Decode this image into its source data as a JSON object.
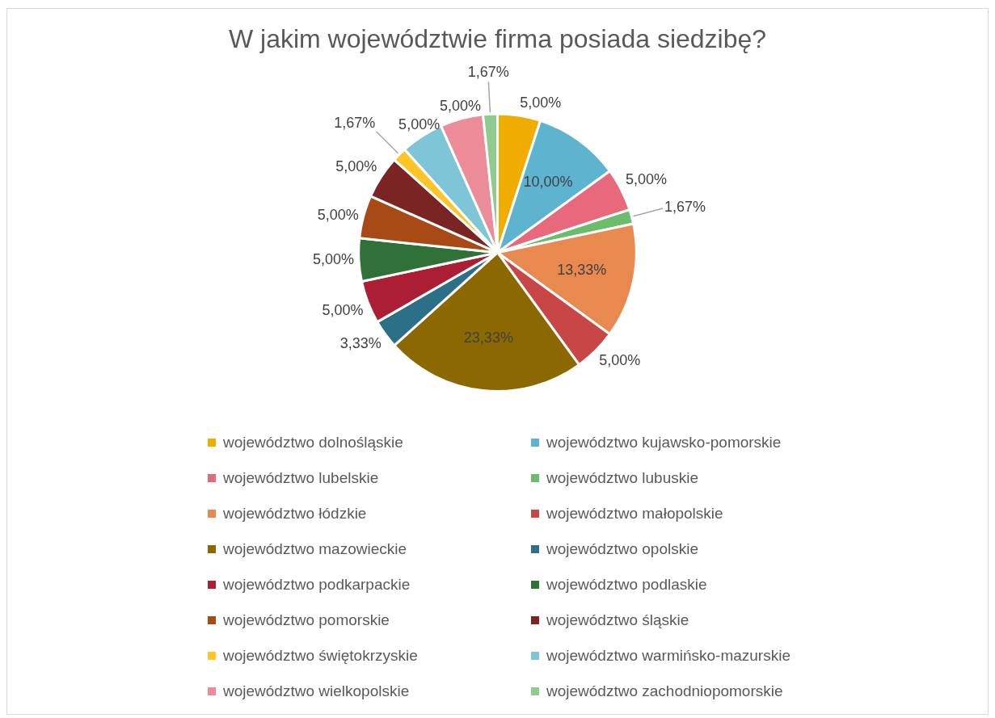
{
  "chart_data": {
    "type": "pie",
    "title": "W jakim województwie firma posiada siedzibę?",
    "categories": [
      "województwo dolnośląskie",
      "województwo kujawsko-pomorskie",
      "województwo lubelskie",
      "województwo lubuskie",
      "województwo łódzkie",
      "województwo małopolskie",
      "województwo mazowieckie",
      "województwo opolskie",
      "województwo podkarpackie",
      "województwo podlaskie",
      "województwo pomorskie",
      "województwo śląskie",
      "województwo świętokrzyskie",
      "województwo warmińsko-mazurskie",
      "województwo wielkopolskie",
      "województwo zachodniopomorskie"
    ],
    "values": [
      5,
      10,
      5,
      1.67,
      13.33,
      5,
      23.33,
      3.33,
      5,
      5,
      5,
      5,
      1.67,
      5,
      5,
      1.67
    ],
    "value_labels": [
      "5,00%",
      "10,00%",
      "5,00%",
      "1,67%",
      "13,33%",
      "5,00%",
      "23,33%",
      "3,33%",
      "5,00%",
      "5,00%",
      "5,00%",
      "5,00%",
      "1,67%",
      "5,00%",
      "5,00%",
      "1,67%"
    ],
    "colors": [
      "#f0ad00",
      "#5eb4cf",
      "#e8697c",
      "#6bbd6b",
      "#e8894f",
      "#c84646",
      "#8c6800",
      "#2b7086",
      "#ac1e33",
      "#2f7136",
      "#a84a16",
      "#7b2424",
      "#ffc425",
      "#7ec5d8",
      "#ec8c98",
      "#8fcb8f"
    ],
    "legend": "bottom"
  }
}
